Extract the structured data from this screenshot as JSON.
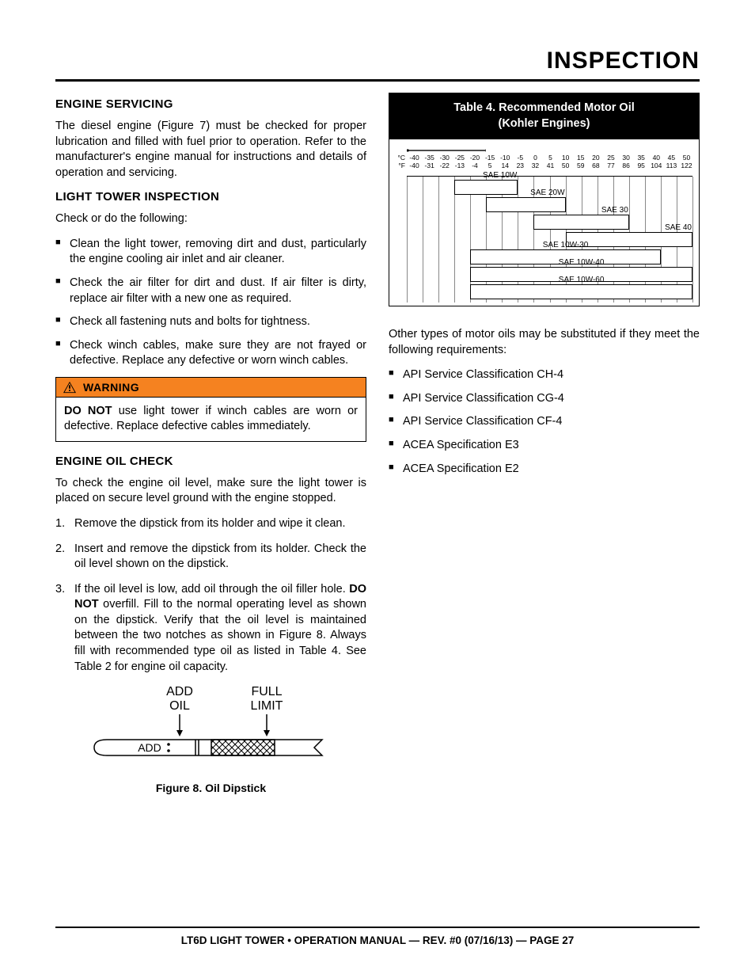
{
  "page_title": "INSPECTION",
  "left": {
    "engine_servicing": {
      "head": "ENGINE SERVICING",
      "p1": "The diesel engine (Figure 7) must be checked for proper lubrication and filled with fuel prior to operation. Refer to the manufacturer's engine manual for instructions and details of operation and servicing."
    },
    "light_tower": {
      "head": "LIGHT TOWER INSPECTION",
      "intro": "Check or do the following:",
      "items": [
        "Clean the light tower, removing dirt and dust, particularly the engine cooling air inlet and air cleaner.",
        "Check the air filter for dirt and dust. If air filter is dirty, replace air filter with a new one as required.",
        "Check all fastening nuts and bolts for tightness.",
        "Check winch cables, make sure they are not frayed or defective. Replace any defective or worn winch cables."
      ]
    },
    "warning": {
      "label": "WARNING",
      "body_pre": "DO NOT",
      "body_post": " use light tower if winch cables are worn or defective. Replace defective cables immediately.",
      "bg_color": "#f58220"
    },
    "engine_oil": {
      "head": "ENGINE OIL CHECK",
      "intro": "To check the engine oil level, make sure the light tower is placed on secure level ground with the engine stopped.",
      "steps": {
        "s1": "Remove the dipstick from its holder and wipe it clean.",
        "s2": "Insert and remove the dipstick from its holder. Check the oil level shown on the dipstick.",
        "s3_a": "If the oil level is low, add oil through the oil filler hole. ",
        "s3_b": "DO NOT",
        "s3_c": " overfill. Fill to the normal operating level as shown on the dipstick. Verify that the oil level is maintained between the two notches as shown in Figure 8. Always fill with recommended type oil as listed in Table 4. See Table 2 for engine oil capacity."
      }
    },
    "figure8": {
      "add_oil": "ADD\nOIL",
      "full_limit": "FULL\nLIMIT",
      "add_label": "ADD",
      "caption": "Figure 8. Oil Dipstick"
    }
  },
  "right": {
    "table4": {
      "title_l1": "Table 4.  Recommended Motor Oil",
      "title_l2": "(Kohler Engines)",
      "celsius_label": "°C",
      "fahrenheit_label": "°F",
      "celsius_ticks": [
        "-40",
        "-35",
        "-30",
        "-25",
        "-20",
        "-15",
        "-10",
        "-5",
        "0",
        "5",
        "10",
        "15",
        "20",
        "25",
        "30",
        "35",
        "40",
        "45",
        "50"
      ],
      "fahrenheit_ticks": [
        "-40",
        "-31",
        "-22",
        "-13",
        "-4",
        "5",
        "14",
        "23",
        "32",
        "41",
        "50",
        "59",
        "68",
        "77",
        "86",
        "95",
        "104",
        "113",
        "122"
      ],
      "temp_min_c": -40,
      "temp_max_c": 50,
      "oils": [
        {
          "name": "SAE 10W",
          "min_c": -25,
          "max_c": -5,
          "label_pos": "right"
        },
        {
          "name": "SAE 20W",
          "min_c": -15,
          "max_c": 10,
          "label_pos": "right"
        },
        {
          "name": "SAE 30",
          "min_c": 0,
          "max_c": 30,
          "label_pos": "right"
        },
        {
          "name": "SAE 40",
          "min_c": 10,
          "max_c": 50,
          "label_pos": "right"
        },
        {
          "name": "SAE 10W-30",
          "min_c": -20,
          "max_c": 40,
          "label_pos": "center"
        },
        {
          "name": "SAE 10W-40",
          "min_c": -20,
          "max_c": 50,
          "label_pos": "center"
        },
        {
          "name": "SAE 10W-60",
          "min_c": -20,
          "max_c": 50,
          "label_pos": "center"
        }
      ]
    },
    "subs_intro": "Other types of motor oils may be substituted if they meet the following requirements:",
    "subs_items": [
      "API Service Classification CH-4",
      "API Service Classification CG-4",
      "API Service Classification CF-4",
      "ACEA Specification E3",
      "ACEA Specification E2"
    ]
  },
  "footer": "LT6D  LIGHT TOWER • OPERATION MANUAL — REV. #0 (07/16/13) — PAGE 27"
}
